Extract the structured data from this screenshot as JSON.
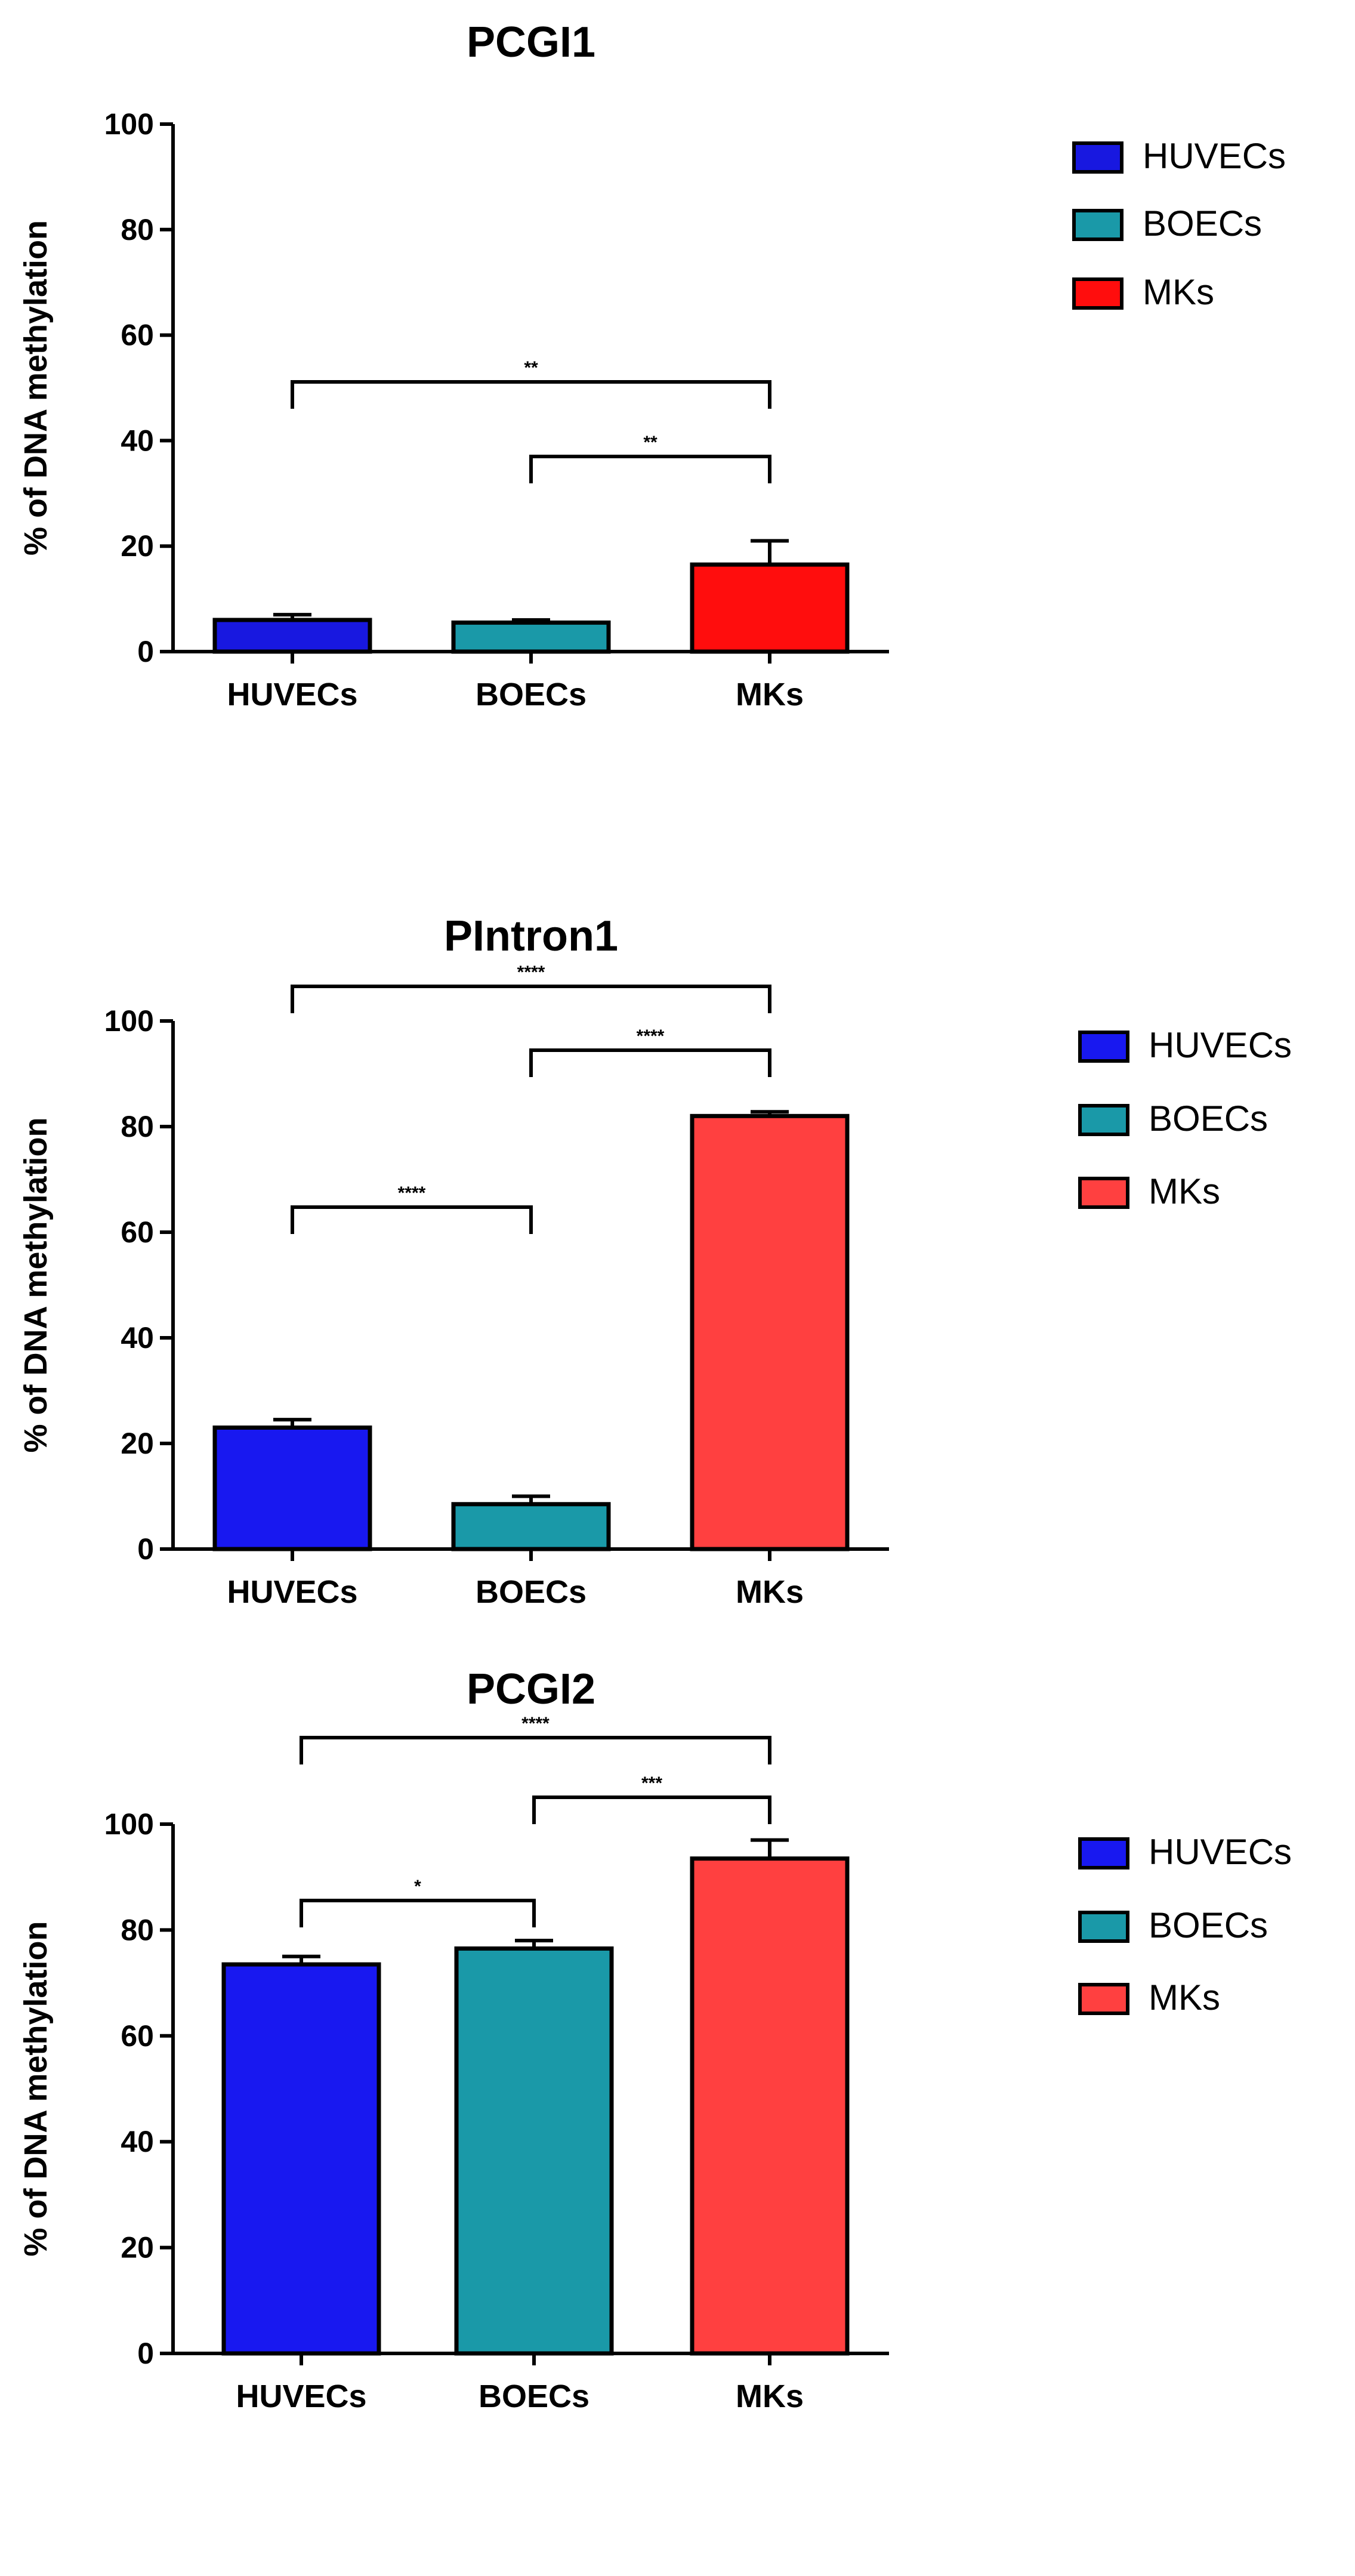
{
  "chart_data": [
    {
      "type": "bar",
      "title": "PCGI1",
      "ylabel": "% of DNA methylation",
      "xlabel": "",
      "categories": [
        "HUVECs",
        "BOECs",
        "MKs"
      ],
      "values": [
        6,
        5.5,
        16.5
      ],
      "errors": [
        1,
        0.5,
        4.5
      ],
      "ylim": [
        0,
        100
      ],
      "yticks": [
        "0",
        "20",
        "40",
        "60",
        "80",
        "100"
      ],
      "legend": [
        "HUVECs",
        "BOECs",
        "MKs"
      ],
      "legend_position": "right",
      "colors": [
        "#1818e0",
        "#1a99a8",
        "#ff0d0d"
      ],
      "significance": [
        {
          "from": 0,
          "to": 2,
          "label": "**"
        },
        {
          "from": 1,
          "to": 2,
          "label": "**"
        }
      ]
    },
    {
      "type": "bar",
      "title": "PIntron1",
      "ylabel": "% of DNA methylation",
      "xlabel": "",
      "categories": [
        "HUVECs",
        "BOECs",
        "MKs"
      ],
      "values": [
        23,
        8.5,
        82
      ],
      "errors": [
        1.5,
        1.5,
        0.8
      ],
      "ylim": [
        0,
        100
      ],
      "yticks": [
        "0",
        "20",
        "40",
        "60",
        "80",
        "100"
      ],
      "legend": [
        "HUVECs",
        "BOECs",
        "MKs"
      ],
      "legend_position": "right",
      "colors": [
        "#1818f0",
        "#1a99a8",
        "#ff4040"
      ],
      "significance": [
        {
          "from": 0,
          "to": 2,
          "label": "****"
        },
        {
          "from": 1,
          "to": 2,
          "label": "****"
        },
        {
          "from": 0,
          "to": 1,
          "label": "****"
        }
      ]
    },
    {
      "type": "bar",
      "title": "PCGI2",
      "ylabel": "% of DNA methylation",
      "xlabel": "",
      "categories": [
        "HUVECs",
        "BOECs",
        "MKs"
      ],
      "values": [
        73.5,
        76.5,
        93.5
      ],
      "errors": [
        1.5,
        1.5,
        3.5
      ],
      "ylim": [
        0,
        100
      ],
      "yticks": [
        "0",
        "20",
        "40",
        "60",
        "80",
        "100"
      ],
      "legend": [
        "HUVECs",
        "BOECs",
        "MKs"
      ],
      "legend_position": "right",
      "colors": [
        "#1818f0",
        "#1a99a8",
        "#ff4040"
      ],
      "significance": [
        {
          "from": 0,
          "to": 2,
          "label": "****"
        },
        {
          "from": 1,
          "to": 2,
          "label": "***"
        },
        {
          "from": 0,
          "to": 1,
          "label": "*"
        }
      ]
    }
  ]
}
